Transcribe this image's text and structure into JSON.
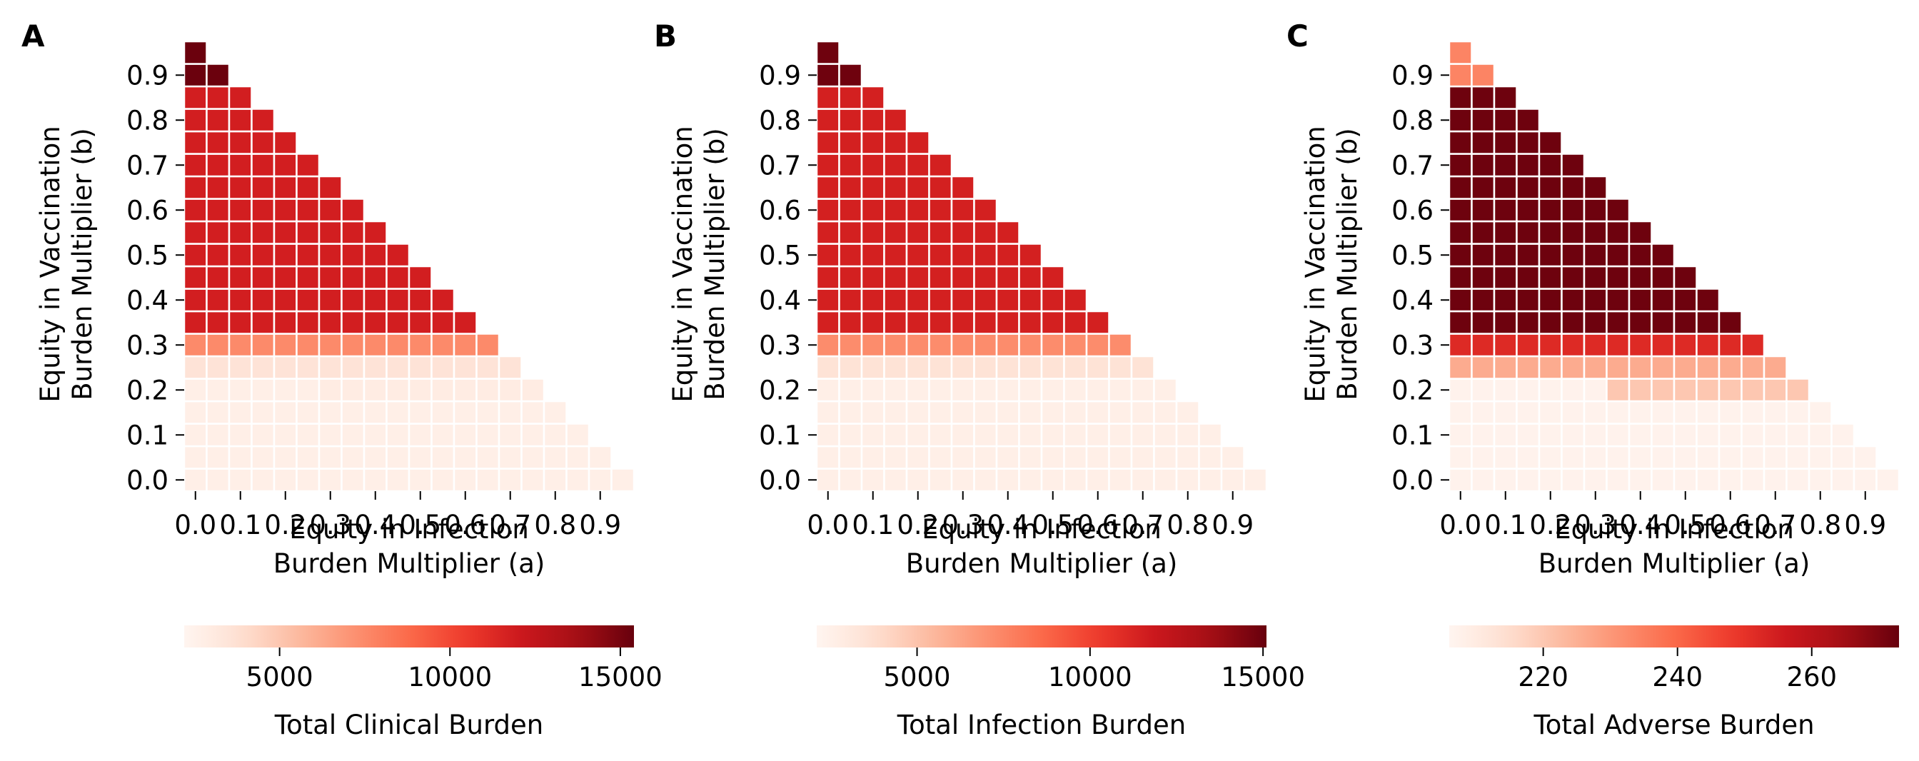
{
  "chart_data": [
    {
      "type": "heatmap",
      "panel_label": "A",
      "xlabel": [
        "Equity in Infection",
        "Burden Multiplier (a)"
      ],
      "ylabel": [
        "Equity in Vaccination",
        "Burden Multiplier (b)"
      ],
      "x": [
        0.0,
        0.05,
        0.1,
        0.15,
        0.2,
        0.25,
        0.3,
        0.35,
        0.4,
        0.45,
        0.5,
        0.55,
        0.6,
        0.65,
        0.7,
        0.75,
        0.8,
        0.85,
        0.9,
        0.95
      ],
      "y": [
        0.0,
        0.05,
        0.1,
        0.15,
        0.2,
        0.25,
        0.3,
        0.35,
        0.4,
        0.45,
        0.5,
        0.55,
        0.6,
        0.65,
        0.7,
        0.75,
        0.8,
        0.85,
        0.9,
        0.95
      ],
      "xtick_labels": [
        "0.0",
        "0.1",
        "0.2",
        "0.3",
        "0.4",
        "0.5",
        "0.6",
        "0.7",
        "0.8",
        "0.9"
      ],
      "ytick_labels": [
        "0.0",
        "0.1",
        "0.2",
        "0.3",
        "0.4",
        "0.5",
        "0.6",
        "0.7",
        "0.8",
        "0.9"
      ],
      "values_by_y": [
        [
          2700,
          2700,
          2700,
          2700,
          2700,
          2700,
          2700,
          2700,
          2700,
          2700,
          2700,
          2700,
          2700,
          2700,
          2700,
          2700,
          2700,
          2700,
          2700,
          2700
        ],
        [
          2700,
          2700,
          2700,
          2700,
          2700,
          2700,
          2700,
          2700,
          2700,
          2700,
          2700,
          2700,
          2700,
          2700,
          2700,
          2700,
          2700,
          2700,
          2700
        ],
        [
          2700,
          2700,
          2700,
          2700,
          2700,
          2700,
          2700,
          2700,
          2700,
          2700,
          2700,
          2700,
          2700,
          2700,
          2700,
          2700,
          2700,
          2700
        ],
        [
          2700,
          2700,
          2700,
          2700,
          2700,
          2700,
          2700,
          2700,
          2700,
          2700,
          2700,
          2700,
          2700,
          2700,
          2700,
          2700,
          2700
        ],
        [
          2700,
          2700,
          2700,
          2700,
          2700,
          2700,
          2900,
          2900,
          2900,
          2900,
          2900,
          2900,
          2900,
          2900,
          2900,
          2900
        ],
        [
          3600,
          3600,
          3600,
          3600,
          3600,
          3600,
          3600,
          3600,
          3600,
          3600,
          3600,
          3600,
          3600,
          3600,
          3600
        ],
        [
          7500,
          7500,
          7500,
          7500,
          7500,
          7500,
          7500,
          7500,
          7500,
          7500,
          7500,
          7500,
          7500,
          7500
        ],
        [
          11800,
          11800,
          11800,
          11800,
          11800,
          11800,
          11800,
          11800,
          11800,
          11800,
          11800,
          11800,
          11800
        ],
        [
          11800,
          11800,
          11800,
          11800,
          11800,
          11800,
          11800,
          11800,
          11800,
          11800,
          11800,
          11800
        ],
        [
          11800,
          11800,
          11800,
          11800,
          11800,
          11800,
          11800,
          11800,
          11800,
          11800,
          11800
        ],
        [
          11800,
          11800,
          11800,
          11800,
          11800,
          11800,
          11800,
          11800,
          11800,
          11800
        ],
        [
          11800,
          11800,
          11800,
          11800,
          11800,
          11800,
          11800,
          11800,
          11800
        ],
        [
          11800,
          11800,
          11800,
          11800,
          11800,
          11800,
          11800,
          11800
        ],
        [
          11800,
          11800,
          11800,
          11800,
          11800,
          11800,
          11800
        ],
        [
          11800,
          11800,
          11800,
          11800,
          11800,
          11800
        ],
        [
          11800,
          11800,
          11800,
          11800,
          11800
        ],
        [
          11800,
          11800,
          11800,
          11800
        ],
        [
          11800,
          11800,
          11800
        ],
        [
          15300,
          15300
        ],
        [
          15300
        ]
      ],
      "colorbar": {
        "label": "Total Clinical Burden",
        "vmin": 2200,
        "vmax": 15400,
        "ticks": [
          5000,
          10000,
          15000
        ],
        "tick_labels": [
          "5000",
          "10000",
          "15000"
        ]
      }
    },
    {
      "type": "heatmap",
      "panel_label": "B",
      "xlabel": [
        "Equity in Infection",
        "Burden Multiplier (a)"
      ],
      "ylabel": [
        "Equity in Vaccination",
        "Burden Multiplier (b)"
      ],
      "x": [
        0.0,
        0.05,
        0.1,
        0.15,
        0.2,
        0.25,
        0.3,
        0.35,
        0.4,
        0.45,
        0.5,
        0.55,
        0.6,
        0.65,
        0.7,
        0.75,
        0.8,
        0.85,
        0.9,
        0.95
      ],
      "y": [
        0.0,
        0.05,
        0.1,
        0.15,
        0.2,
        0.25,
        0.3,
        0.35,
        0.4,
        0.45,
        0.5,
        0.55,
        0.6,
        0.65,
        0.7,
        0.75,
        0.8,
        0.85,
        0.9,
        0.95
      ],
      "xtick_labels": [
        "0.0",
        "0.1",
        "0.2",
        "0.3",
        "0.4",
        "0.5",
        "0.6",
        "0.7",
        "0.8",
        "0.9"
      ],
      "ytick_labels": [
        "0.0",
        "0.1",
        "0.2",
        "0.3",
        "0.4",
        "0.5",
        "0.6",
        "0.7",
        "0.8",
        "0.9"
      ],
      "values_by_y": [
        [
          2600,
          2600,
          2600,
          2600,
          2600,
          2600,
          2600,
          2600,
          2600,
          2600,
          2600,
          2600,
          2600,
          2600,
          2600,
          2600,
          2600,
          2600,
          2600,
          2600
        ],
        [
          2600,
          2600,
          2600,
          2600,
          2600,
          2600,
          2600,
          2600,
          2600,
          2600,
          2600,
          2600,
          2600,
          2600,
          2600,
          2600,
          2600,
          2600,
          2600
        ],
        [
          2600,
          2600,
          2600,
          2600,
          2600,
          2600,
          2600,
          2600,
          2600,
          2600,
          2600,
          2600,
          2600,
          2600,
          2600,
          2600,
          2600,
          2600
        ],
        [
          2600,
          2600,
          2600,
          2600,
          2600,
          2600,
          2600,
          2600,
          2600,
          2600,
          2600,
          2600,
          2600,
          2600,
          2600,
          2600,
          2600
        ],
        [
          2600,
          2600,
          2600,
          2600,
          2600,
          2600,
          2600,
          2600,
          2600,
          2600,
          2600,
          2600,
          2600,
          2600,
          2600,
          2600
        ],
        [
          3500,
          3500,
          3500,
          3500,
          3500,
          3500,
          3500,
          3500,
          3500,
          3500,
          3500,
          3500,
          3500,
          3500,
          3500
        ],
        [
          7200,
          7200,
          7200,
          7200,
          7200,
          7200,
          7200,
          7200,
          7200,
          7200,
          7200,
          7200,
          7200,
          7200
        ],
        [
          11500,
          11500,
          11500,
          11500,
          11500,
          11500,
          11500,
          11500,
          11500,
          11500,
          11500,
          11500,
          11500
        ],
        [
          11500,
          11500,
          11500,
          11500,
          11500,
          11500,
          11500,
          11500,
          11500,
          11500,
          11500,
          11500
        ],
        [
          11500,
          11500,
          11500,
          11500,
          11500,
          11500,
          11500,
          11500,
          11500,
          11500,
          11500
        ],
        [
          11500,
          11500,
          11500,
          11500,
          11500,
          11500,
          11500,
          11500,
          11500,
          11500
        ],
        [
          11500,
          11500,
          11500,
          11500,
          11500,
          11500,
          11500,
          11500,
          11500
        ],
        [
          11500,
          11500,
          11500,
          11500,
          11500,
          11500,
          11500,
          11500
        ],
        [
          11500,
          11500,
          11500,
          11500,
          11500,
          11500,
          11500
        ],
        [
          11500,
          11500,
          11500,
          11500,
          11500,
          11500
        ],
        [
          11500,
          11500,
          11500,
          11500,
          11500
        ],
        [
          11500,
          11500,
          11500,
          11500
        ],
        [
          11500,
          11500,
          11500
        ],
        [
          14900,
          14900
        ],
        [
          14900
        ]
      ],
      "colorbar": {
        "label": "Total Infection Burden",
        "vmin": 2100,
        "vmax": 15100,
        "ticks": [
          5000,
          10000,
          15000
        ],
        "tick_labels": [
          "5000",
          "10000",
          "15000"
        ]
      }
    },
    {
      "type": "heatmap",
      "panel_label": "C",
      "xlabel": [
        "Equity in Infection",
        "Burden Multiplier (a)"
      ],
      "ylabel": [
        "Equity in Vaccination",
        "Burden Multiplier (b)"
      ],
      "x": [
        0.0,
        0.05,
        0.1,
        0.15,
        0.2,
        0.25,
        0.3,
        0.35,
        0.4,
        0.45,
        0.5,
        0.55,
        0.6,
        0.65,
        0.7,
        0.75,
        0.8,
        0.85,
        0.9,
        0.95
      ],
      "y": [
        0.0,
        0.05,
        0.1,
        0.15,
        0.2,
        0.25,
        0.3,
        0.35,
        0.4,
        0.45,
        0.5,
        0.55,
        0.6,
        0.65,
        0.7,
        0.75,
        0.8,
        0.85,
        0.9,
        0.95
      ],
      "xtick_labels": [
        "0.0",
        "0.1",
        "0.2",
        "0.3",
        "0.4",
        "0.5",
        "0.6",
        "0.7",
        "0.8",
        "0.9"
      ],
      "ytick_labels": [
        "0.0",
        "0.1",
        "0.2",
        "0.3",
        "0.4",
        "0.5",
        "0.6",
        "0.7",
        "0.8",
        "0.9"
      ],
      "values_by_y": [
        [
          207,
          207,
          207,
          207,
          207,
          207,
          207,
          207,
          207,
          207,
          207,
          207,
          207,
          207,
          207,
          207,
          207,
          207,
          207,
          207
        ],
        [
          207,
          207,
          207,
          207,
          207,
          207,
          207,
          207,
          207,
          207,
          207,
          207,
          207,
          207,
          207,
          207,
          207,
          207,
          207
        ],
        [
          207,
          207,
          207,
          207,
          207,
          207,
          207,
          207,
          207,
          207,
          207,
          207,
          207,
          207,
          207,
          207,
          207,
          207
        ],
        [
          207,
          207,
          207,
          207,
          207,
          207,
          207,
          207,
          207,
          207,
          207,
          207,
          207,
          207,
          207,
          207,
          207
        ],
        [
          207,
          207,
          207,
          207,
          207,
          207,
          207,
          220,
          220,
          220,
          220,
          220,
          220,
          220,
          220,
          220
        ],
        [
          226,
          226,
          226,
          226,
          226,
          226,
          226,
          226,
          226,
          226,
          226,
          226,
          226,
          226,
          226
        ],
        [
          252,
          252,
          252,
          252,
          252,
          252,
          252,
          252,
          252,
          252,
          252,
          252,
          252,
          252
        ],
        [
          272,
          272,
          272,
          272,
          272,
          272,
          272,
          272,
          272,
          272,
          272,
          272,
          272
        ],
        [
          272,
          272,
          272,
          272,
          272,
          272,
          272,
          272,
          272,
          272,
          272,
          272
        ],
        [
          272,
          272,
          272,
          272,
          272,
          272,
          272,
          272,
          272,
          272,
          272
        ],
        [
          272,
          272,
          272,
          272,
          272,
          272,
          272,
          272,
          272,
          272
        ],
        [
          272,
          272,
          272,
          272,
          272,
          272,
          272,
          272,
          272
        ],
        [
          272,
          272,
          272,
          272,
          272,
          272,
          272,
          272
        ],
        [
          272,
          272,
          272,
          272,
          272,
          272,
          272
        ],
        [
          272,
          272,
          272,
          272,
          272,
          272
        ],
        [
          272,
          272,
          272,
          272,
          272
        ],
        [
          272,
          272,
          272,
          272
        ],
        [
          272,
          272,
          272
        ],
        [
          234,
          234
        ],
        [
          234
        ]
      ],
      "colorbar": {
        "label": "Total Adverse Burden",
        "vmin": 206,
        "vmax": 273,
        "ticks": [
          220,
          240,
          260
        ],
        "tick_labels": [
          "220",
          "240",
          "260"
        ]
      }
    }
  ]
}
